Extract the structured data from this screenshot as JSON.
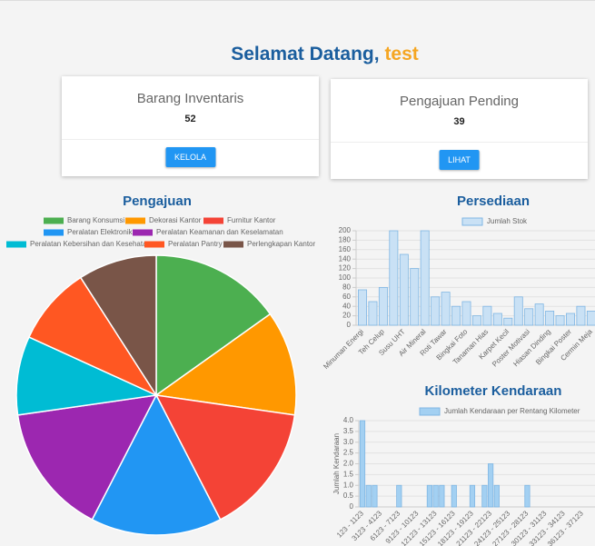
{
  "header": {
    "greeting": "Selamat Datang,",
    "user": "test"
  },
  "cards": [
    {
      "title": "Barang Inventaris",
      "value": 52,
      "button": "KELOLA"
    },
    {
      "title": "Pengajuan Pending",
      "value": 39,
      "button": "LIHAT"
    }
  ],
  "chart_data": [
    {
      "type": "pie",
      "title": "Pengajuan",
      "categories": [
        "Barang Konsumsi",
        "Dekorasi Kantor",
        "Furnitur Kantor",
        "Peralatan Elektronik",
        "Peralatan Keamanan dan Keselamatan",
        "Peralatan Kebersihan dan Kesehatan",
        "Peralatan Pantry",
        "Perlengkapan Kantor"
      ],
      "values": [
        5,
        4,
        5,
        5,
        5,
        3,
        3,
        3
      ],
      "colors": [
        "#4caf50",
        "#ff9800",
        "#f44336",
        "#2196f3",
        "#9c27b0",
        "#00bcd4",
        "#ff5722",
        "#795548"
      ]
    },
    {
      "type": "bar",
      "title": "Persediaan",
      "categories": [
        "Minuman Energi",
        null,
        "Teh Celup",
        null,
        "Susu UHT",
        null,
        "Air Mineral",
        null,
        "Roti Tawar",
        null,
        "Bingkai Foto",
        null,
        "Tanaman Hias",
        null,
        "Karpet Kecil",
        null,
        "Poster Motivasi",
        null,
        "Hiasan Dinding",
        null,
        "Bingkai Poster",
        null,
        "Cermin Meja",
        null
      ],
      "series": [
        {
          "name": "Jumlah Stok",
          "color": "#c9e1f5",
          "values": [
            75,
            50,
            80,
            200,
            150,
            120,
            200,
            60,
            70,
            40,
            50,
            20,
            40,
            25,
            15,
            60,
            35,
            45,
            30,
            20,
            25,
            40,
            30,
            50
          ]
        }
      ],
      "ylim": [
        0,
        200
      ],
      "yticks": [
        0,
        20,
        40,
        60,
        80,
        100,
        120,
        140,
        160,
        180,
        200
      ],
      "grid": true
    },
    {
      "type": "bar",
      "title": "Kilometer Kendaraan",
      "y_label": "Jumlah Kendaraan",
      "categories": [
        "123 - 1123",
        null,
        null,
        "3123 - 4123",
        null,
        null,
        "6123 - 7123",
        null,
        null,
        "9123 - 10123",
        null,
        null,
        "12123 - 13123",
        null,
        null,
        "15123 - 16123",
        null,
        null,
        "18123 - 19123",
        null,
        null,
        "21123 - 22123",
        null,
        null,
        "24123 - 25123",
        null,
        null,
        "27123 - 28123",
        null,
        null,
        "30123 - 31123",
        null,
        null,
        "33123 - 34123",
        null,
        null,
        "36123 - 37123",
        null,
        null
      ],
      "series": [
        {
          "name": "Jumlah Kendaraan per Rentang Kilometer",
          "color": "#a3d0f2",
          "values": [
            4,
            1,
            1,
            0,
            0,
            0,
            1,
            0,
            0,
            0,
            0,
            1,
            1,
            1,
            0,
            1,
            0,
            0,
            1,
            0,
            1,
            2,
            1,
            0,
            0,
            0,
            0,
            1,
            0,
            0,
            0,
            0,
            0,
            0,
            0,
            0,
            0,
            0,
            0
          ]
        }
      ],
      "ylim": [
        0,
        4
      ],
      "yticks": [
        0,
        0.5,
        {
          "value": 1,
          "label": "1.0"
        },
        1.5,
        {
          "value": 2,
          "label": "2.0"
        },
        2.5,
        {
          "value": 3,
          "label": "3.0"
        },
        3.5,
        {
          "value": 4,
          "label": "4.0"
        }
      ],
      "grid": true
    }
  ]
}
